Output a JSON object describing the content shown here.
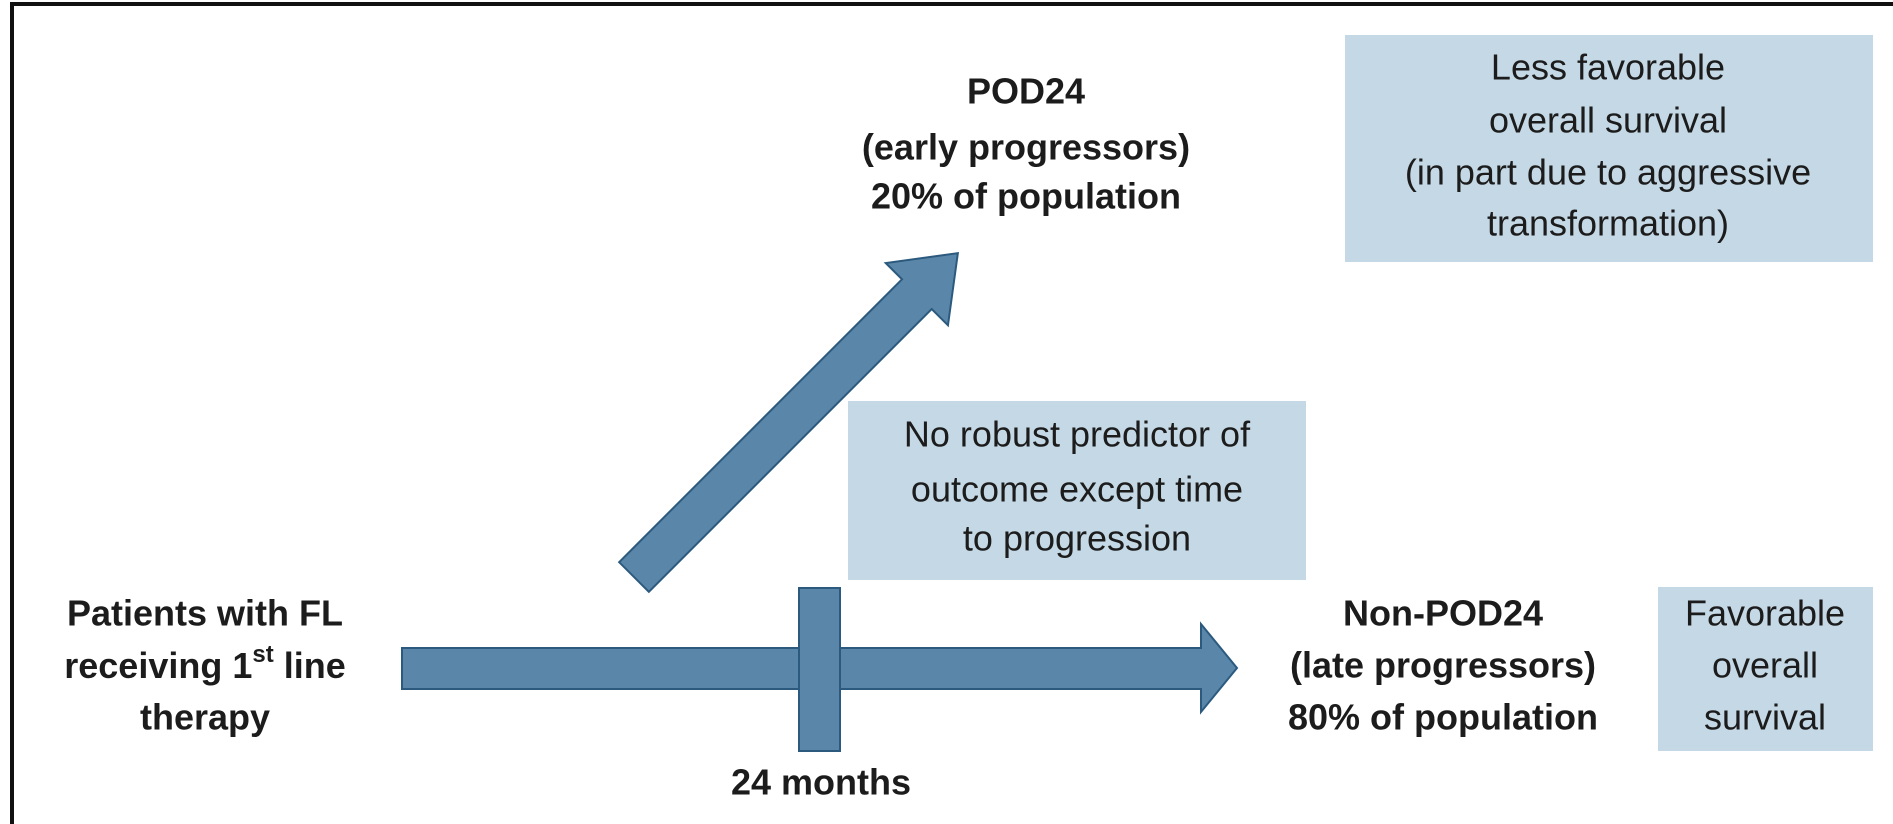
{
  "start": {
    "lines": [
      "Patients with FL",
      {
        "pre": "receiving 1",
        "sup": "st",
        "post": " line"
      },
      "therapy"
    ]
  },
  "timepoint": "24 months",
  "pod24": {
    "lines": [
      "POD24",
      "(early progressors)",
      "20% of population"
    ]
  },
  "pod24_outcome": {
    "lines": [
      "Less favorable",
      "overall survival",
      "(in part due to aggressive",
      "transformation)"
    ]
  },
  "predictor_note": {
    "lines": [
      "No robust predictor of",
      "outcome except time",
      "to progression"
    ]
  },
  "non_pod24": {
    "lines": [
      "Non-POD24",
      "(late progressors)",
      "80% of population"
    ]
  },
  "non_pod24_outcome": {
    "lines": [
      "Favorable",
      "overall",
      "survival"
    ]
  }
}
